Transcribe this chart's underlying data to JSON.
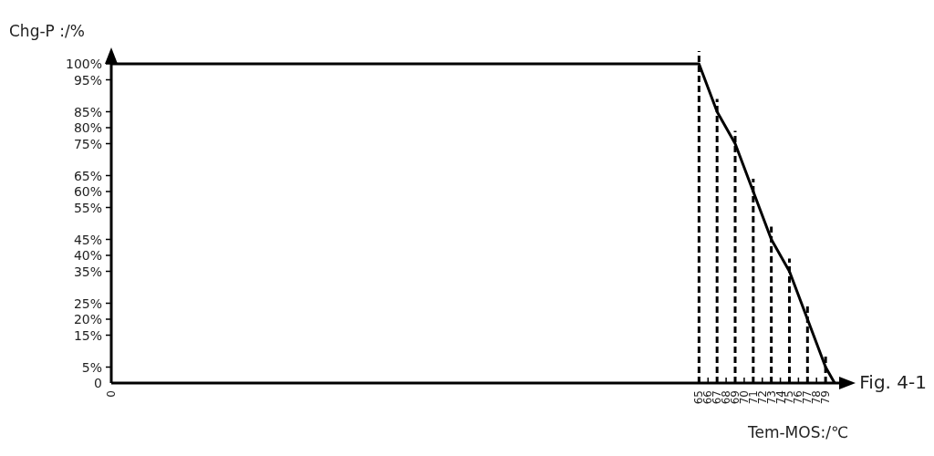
{
  "chart_data": {
    "type": "line",
    "xlabel": "Tem-MOS:/℃",
    "ylabel": "Chg-P :/%",
    "annotations": [
      "Fig. 4-1"
    ],
    "xlim": [
      0,
      80.5
    ],
    "xticks": [
      0,
      65,
      66,
      67,
      68,
      69,
      70,
      71,
      72,
      73,
      74,
      75,
      76,
      77,
      78,
      79
    ],
    "ylim": [
      0,
      100
    ],
    "yticks": [
      {
        "value": 0,
        "label": "0"
      },
      {
        "value": 5,
        "label": "5%"
      },
      {
        "value": 15,
        "label": "15%"
      },
      {
        "value": 20,
        "label": "20%"
      },
      {
        "value": 25,
        "label": "25%"
      },
      {
        "value": 35,
        "label": "35%"
      },
      {
        "value": 40,
        "label": "40%"
      },
      {
        "value": 45,
        "label": "45%"
      },
      {
        "value": 55,
        "label": "55%"
      },
      {
        "value": 60,
        "label": "60%"
      },
      {
        "value": 65,
        "label": "65%"
      },
      {
        "value": 75,
        "label": "75%"
      },
      {
        "value": 80,
        "label": "80%"
      },
      {
        "value": 85,
        "label": "85%"
      },
      {
        "value": 95,
        "label": "95%"
      },
      {
        "value": 100,
        "label": "100%"
      }
    ],
    "x": [
      0,
      65,
      67,
      69,
      71,
      73,
      75,
      77,
      79,
      80
    ],
    "series": [
      {
        "color": "#000000",
        "values": [
          100,
          100,
          85,
          75,
          60,
          45,
          35,
          20,
          5,
          0
        ]
      }
    ],
    "ref_lines": [
      {
        "axis": "x",
        "value": 65,
        "line_style": "dashed"
      },
      {
        "axis": "x",
        "value": 67,
        "line_style": "dashed"
      },
      {
        "axis": "x",
        "value": 69,
        "line_style": "dashed"
      },
      {
        "axis": "x",
        "value": 71,
        "line_style": "dashed"
      },
      {
        "axis": "x",
        "value": 73,
        "line_style": "dashed"
      },
      {
        "axis": "x",
        "value": 75,
        "line_style": "dashed"
      },
      {
        "axis": "x",
        "value": 77,
        "line_style": "dashed"
      },
      {
        "axis": "x",
        "value": 79,
        "line_style": "dashed"
      }
    ],
    "grid": false,
    "marker": "none",
    "line_style": "solid"
  }
}
